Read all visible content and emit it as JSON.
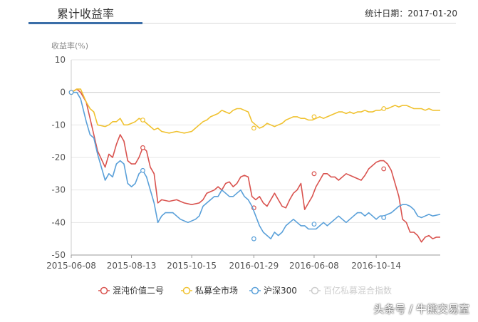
{
  "header": {
    "title": "累计收益率",
    "stat_date": "统计日期：2017-01-20"
  },
  "watermark": "头条号 / 牛熊交易室",
  "chart_data": {
    "type": "line",
    "ylabel": "收益率(%)",
    "ylim": [
      -50,
      10
    ],
    "yticks": [
      10,
      0,
      -10,
      -20,
      -30,
      -40,
      -50
    ],
    "x_tick_labels": [
      "2015-06-08",
      "2015-08-13",
      "2015-10-15",
      "2016-01-29",
      "2016-06-08",
      "2016-10-14"
    ],
    "x_tick_index": [
      0,
      32,
      64,
      97,
      129,
      162
    ],
    "x_count": 186,
    "grid": "horizontal",
    "legend_position": "bottom",
    "series": [
      {
        "name": "混沌价值二号",
        "color": "#d9534f",
        "points": [
          [
            0,
            0
          ],
          [
            3,
            1
          ],
          [
            5,
            0
          ],
          [
            8,
            -3
          ],
          [
            10,
            -8
          ],
          [
            12,
            -13
          ],
          [
            14,
            -18
          ],
          [
            18,
            -23
          ],
          [
            20,
            -19
          ],
          [
            22,
            -20
          ],
          [
            24,
            -16
          ],
          [
            26,
            -13
          ],
          [
            28,
            -15
          ],
          [
            30,
            -21
          ],
          [
            32,
            -22
          ],
          [
            34,
            -22
          ],
          [
            36,
            -20
          ],
          [
            38,
            -17
          ],
          [
            40,
            -18
          ],
          [
            42,
            -23
          ],
          [
            44,
            -25
          ],
          [
            46,
            -34
          ],
          [
            48,
            -33
          ],
          [
            52,
            -33.5
          ],
          [
            56,
            -33
          ],
          [
            60,
            -34
          ],
          [
            64,
            -34.5
          ],
          [
            68,
            -34
          ],
          [
            70,
            -33
          ],
          [
            72,
            -31
          ],
          [
            74,
            -30.5
          ],
          [
            76,
            -30
          ],
          [
            78,
            -29
          ],
          [
            80,
            -30
          ],
          [
            82,
            -28
          ],
          [
            84,
            -27.5
          ],
          [
            86,
            -29
          ],
          [
            88,
            -28
          ],
          [
            90,
            -26
          ],
          [
            92,
            -25.5
          ],
          [
            94,
            -26
          ],
          [
            96,
            -32
          ],
          [
            98,
            -33
          ],
          [
            100,
            -32
          ],
          [
            102,
            -34
          ],
          [
            104,
            -35
          ],
          [
            106,
            -33
          ],
          [
            108,
            -31
          ],
          [
            110,
            -33
          ],
          [
            112,
            -35
          ],
          [
            114,
            -35.5
          ],
          [
            116,
            -33
          ],
          [
            118,
            -31
          ],
          [
            120,
            -30
          ],
          [
            122,
            -28
          ],
          [
            124,
            -36
          ],
          [
            126,
            -34
          ],
          [
            128,
            -32
          ],
          [
            130,
            -29
          ],
          [
            132,
            -27
          ],
          [
            134,
            -25
          ],
          [
            136,
            -25
          ],
          [
            138,
            -26
          ],
          [
            140,
            -26
          ],
          [
            142,
            -27
          ],
          [
            146,
            -25
          ],
          [
            150,
            -26
          ],
          [
            154,
            -27
          ],
          [
            156,
            -25.5
          ],
          [
            158,
            -23.5
          ],
          [
            160,
            -22.5
          ],
          [
            162,
            -21.5
          ],
          [
            164,
            -21
          ],
          [
            166,
            -21
          ],
          [
            168,
            -22
          ],
          [
            170,
            -24
          ],
          [
            172,
            -28
          ],
          [
            174,
            -32
          ],
          [
            176,
            -39
          ],
          [
            178,
            -40
          ],
          [
            180,
            -43
          ],
          [
            182,
            -43
          ],
          [
            184,
            -44
          ],
          [
            186,
            -46
          ],
          [
            188,
            -44.5
          ],
          [
            190,
            -44
          ],
          [
            192,
            -45
          ],
          [
            194,
            -44.5
          ],
          [
            196,
            -44.5
          ]
        ],
        "markers": [
          [
            0,
            0
          ],
          [
            38,
            -17
          ],
          [
            97,
            -35.5
          ],
          [
            129,
            -25
          ],
          [
            166,
            -23.5
          ]
        ]
      },
      {
        "name": "私募全市场",
        "color": "#f0c230",
        "points": [
          [
            0,
            0
          ],
          [
            3,
            1
          ],
          [
            5,
            1
          ],
          [
            8,
            -3
          ],
          [
            10,
            -5
          ],
          [
            12,
            -6
          ],
          [
            14,
            -10
          ],
          [
            18,
            -10.5
          ],
          [
            20,
            -10
          ],
          [
            22,
            -9
          ],
          [
            24,
            -9
          ],
          [
            26,
            -8
          ],
          [
            28,
            -10
          ],
          [
            30,
            -10
          ],
          [
            32,
            -9.5
          ],
          [
            34,
            -9
          ],
          [
            36,
            -8
          ],
          [
            38,
            -8.5
          ],
          [
            40,
            -9.5
          ],
          [
            42,
            -10.5
          ],
          [
            44,
            -11.5
          ],
          [
            46,
            -11
          ],
          [
            48,
            -12
          ],
          [
            52,
            -12.5
          ],
          [
            56,
            -12
          ],
          [
            60,
            -12.5
          ],
          [
            64,
            -12
          ],
          [
            66,
            -11
          ],
          [
            68,
            -10
          ],
          [
            70,
            -9
          ],
          [
            72,
            -8.5
          ],
          [
            74,
            -7.5
          ],
          [
            76,
            -7
          ],
          [
            78,
            -6.5
          ],
          [
            80,
            -5.5
          ],
          [
            82,
            -6
          ],
          [
            84,
            -6.5
          ],
          [
            86,
            -5.5
          ],
          [
            88,
            -5
          ],
          [
            90,
            -5
          ],
          [
            92,
            -5.5
          ],
          [
            94,
            -6
          ],
          [
            96,
            -9
          ],
          [
            98,
            -10
          ],
          [
            100,
            -11
          ],
          [
            102,
            -10.5
          ],
          [
            104,
            -9.5
          ],
          [
            106,
            -10
          ],
          [
            108,
            -10.5
          ],
          [
            110,
            -10
          ],
          [
            112,
            -9.5
          ],
          [
            114,
            -8.5
          ],
          [
            116,
            -8
          ],
          [
            118,
            -7.5
          ],
          [
            120,
            -7.5
          ],
          [
            122,
            -8
          ],
          [
            124,
            -8
          ],
          [
            126,
            -8.5
          ],
          [
            128,
            -8.5
          ],
          [
            130,
            -8
          ],
          [
            132,
            -7.5
          ],
          [
            134,
            -8
          ],
          [
            136,
            -7.5
          ],
          [
            138,
            -7
          ],
          [
            140,
            -6.5
          ],
          [
            142,
            -6
          ],
          [
            144,
            -6
          ],
          [
            146,
            -6.5
          ],
          [
            148,
            -6
          ],
          [
            150,
            -6.5
          ],
          [
            152,
            -6
          ],
          [
            154,
            -6
          ],
          [
            156,
            -5.5
          ],
          [
            158,
            -6
          ],
          [
            160,
            -6
          ],
          [
            162,
            -5.5
          ],
          [
            164,
            -5.5
          ],
          [
            166,
            -5
          ],
          [
            168,
            -5
          ],
          [
            170,
            -4.5
          ],
          [
            172,
            -4
          ],
          [
            174,
            -4.5
          ],
          [
            176,
            -4
          ],
          [
            178,
            -4
          ],
          [
            180,
            -4.5
          ],
          [
            182,
            -5
          ],
          [
            184,
            -5
          ],
          [
            186,
            -5
          ],
          [
            188,
            -5.5
          ],
          [
            190,
            -5
          ],
          [
            192,
            -5.5
          ],
          [
            196,
            -5.5
          ]
        ],
        "markers": [
          [
            0,
            0
          ],
          [
            38,
            -8.5
          ],
          [
            97,
            -11
          ],
          [
            129,
            -7.5
          ],
          [
            166,
            -5
          ]
        ]
      },
      {
        "name": "沪深300",
        "color": "#5aa0d9",
        "points": [
          [
            0,
            0
          ],
          [
            3,
            0
          ],
          [
            5,
            -2
          ],
          [
            8,
            -9
          ],
          [
            10,
            -13
          ],
          [
            12,
            -14
          ],
          [
            14,
            -19
          ],
          [
            18,
            -27
          ],
          [
            20,
            -25
          ],
          [
            22,
            -26
          ],
          [
            24,
            -22
          ],
          [
            26,
            -21
          ],
          [
            28,
            -22
          ],
          [
            30,
            -28
          ],
          [
            32,
            -29
          ],
          [
            34,
            -28
          ],
          [
            36,
            -25
          ],
          [
            38,
            -24
          ],
          [
            40,
            -26
          ],
          [
            42,
            -30
          ],
          [
            44,
            -34
          ],
          [
            46,
            -40
          ],
          [
            48,
            -38
          ],
          [
            50,
            -37
          ],
          [
            54,
            -37
          ],
          [
            58,
            -39
          ],
          [
            62,
            -40
          ],
          [
            66,
            -39
          ],
          [
            68,
            -38
          ],
          [
            70,
            -35
          ],
          [
            72,
            -34
          ],
          [
            74,
            -33
          ],
          [
            76,
            -32
          ],
          [
            78,
            -32
          ],
          [
            80,
            -30
          ],
          [
            82,
            -31
          ],
          [
            84,
            -32
          ],
          [
            86,
            -32
          ],
          [
            88,
            -31
          ],
          [
            90,
            -30
          ],
          [
            92,
            -32
          ],
          [
            94,
            -33
          ],
          [
            96,
            -35
          ],
          [
            98,
            -38
          ],
          [
            100,
            -41
          ],
          [
            102,
            -43
          ],
          [
            104,
            -44
          ],
          [
            106,
            -45
          ],
          [
            108,
            -43
          ],
          [
            110,
            -44
          ],
          [
            112,
            -43
          ],
          [
            114,
            -41
          ],
          [
            116,
            -40
          ],
          [
            118,
            -39
          ],
          [
            120,
            -40
          ],
          [
            122,
            -41
          ],
          [
            124,
            -41
          ],
          [
            126,
            -42
          ],
          [
            128,
            -42
          ],
          [
            130,
            -42
          ],
          [
            132,
            -41
          ],
          [
            134,
            -40
          ],
          [
            136,
            -41
          ],
          [
            138,
            -40
          ],
          [
            140,
            -39
          ],
          [
            142,
            -38
          ],
          [
            144,
            -39
          ],
          [
            146,
            -40
          ],
          [
            148,
            -39
          ],
          [
            150,
            -38
          ],
          [
            152,
            -37
          ],
          [
            154,
            -37
          ],
          [
            156,
            -38
          ],
          [
            158,
            -37
          ],
          [
            160,
            -38
          ],
          [
            162,
            -39
          ],
          [
            164,
            -38
          ],
          [
            166,
            -38
          ],
          [
            168,
            -37.5
          ],
          [
            170,
            -37
          ],
          [
            172,
            -36
          ],
          [
            174,
            -35
          ],
          [
            176,
            -34.5
          ],
          [
            178,
            -34.5
          ],
          [
            180,
            -35
          ],
          [
            182,
            -36
          ],
          [
            184,
            -38
          ],
          [
            186,
            -38.5
          ],
          [
            188,
            -38
          ],
          [
            190,
            -37.5
          ],
          [
            192,
            -38
          ],
          [
            196,
            -37.5
          ]
        ],
        "markers": [
          [
            0,
            0
          ],
          [
            38,
            -24
          ],
          [
            97,
            -45
          ],
          [
            129,
            -40.5
          ],
          [
            166,
            -38.5
          ]
        ]
      },
      {
        "name": "百亿私募混合指数",
        "color": "#cccccc",
        "points": [],
        "markers": []
      }
    ]
  }
}
